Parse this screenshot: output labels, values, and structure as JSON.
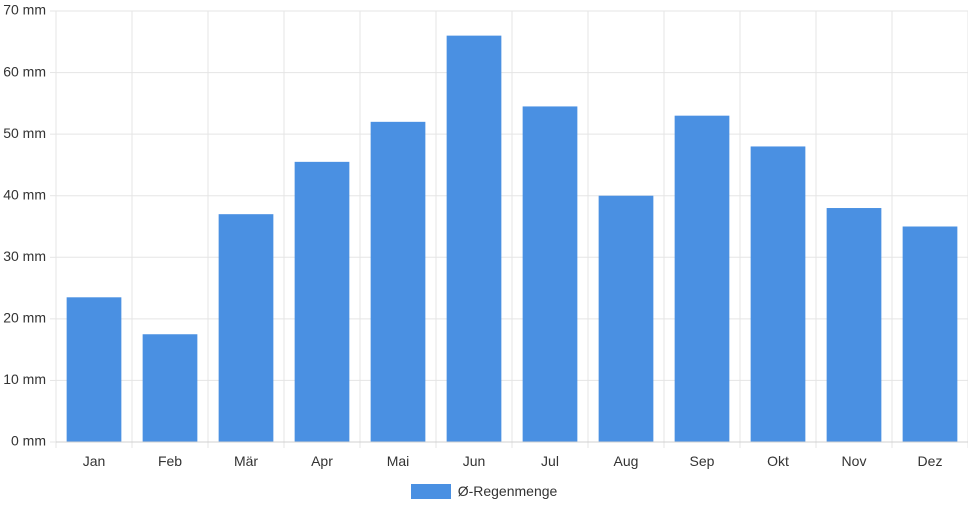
{
  "chart_data": {
    "type": "bar",
    "categories": [
      "Jan",
      "Feb",
      "Mär",
      "Apr",
      "Mai",
      "Jun",
      "Jul",
      "Aug",
      "Sep",
      "Okt",
      "Nov",
      "Dez"
    ],
    "series": [
      {
        "name": "Ø-Regenmenge",
        "values": [
          23.5,
          17.5,
          37,
          45.5,
          52,
          66,
          54.5,
          40,
          53,
          48,
          38,
          35
        ],
        "color": "#4a90e2"
      }
    ],
    "y_ticks": [
      "0 mm",
      "10 mm",
      "20 mm",
      "30 mm",
      "40 mm",
      "50 mm",
      "60 mm",
      "70 mm"
    ],
    "ylim": [
      0,
      70
    ],
    "y_unit": "mm",
    "grid": true,
    "legend_position": "bottom"
  }
}
